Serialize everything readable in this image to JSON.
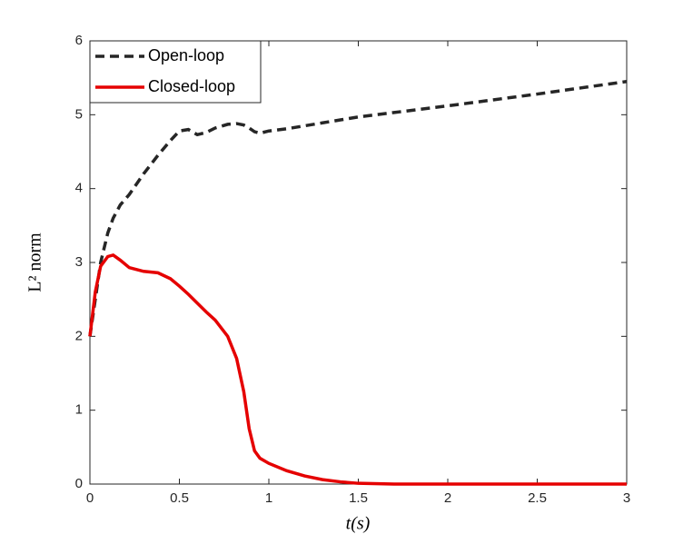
{
  "chart_data": {
    "type": "line",
    "xlabel": "t(s)",
    "ylabel": "L² norm",
    "x": [
      0,
      0.03,
      0.06,
      0.1,
      0.13,
      0.17,
      0.22,
      0.3,
      0.38,
      0.45,
      0.5,
      0.55,
      0.6,
      0.65,
      0.7,
      0.77,
      0.82,
      0.86,
      0.89,
      0.92,
      0.95,
      1.0,
      1.1,
      1.2,
      1.3,
      1.4,
      1.5,
      1.7,
      2.0,
      2.5,
      3.0
    ],
    "series": [
      {
        "name": "Open-loop",
        "color": "#262626",
        "dashed": true,
        "values": [
          2.0,
          2.5,
          3.0,
          3.4,
          3.6,
          3.78,
          3.92,
          4.2,
          4.45,
          4.65,
          4.78,
          4.8,
          4.73,
          4.76,
          4.82,
          4.87,
          4.88,
          4.86,
          4.82,
          4.77,
          4.75,
          4.78,
          4.81,
          4.85,
          4.89,
          4.93,
          4.97,
          5.03,
          5.12,
          5.28,
          5.45
        ]
      },
      {
        "name": "Closed-loop",
        "color": "#e50000",
        "dashed": false,
        "values": [
          2.0,
          2.6,
          2.95,
          3.08,
          3.1,
          3.03,
          2.93,
          2.88,
          2.86,
          2.78,
          2.68,
          2.57,
          2.45,
          2.33,
          2.22,
          2.0,
          1.7,
          1.25,
          0.75,
          0.45,
          0.35,
          0.28,
          0.18,
          0.11,
          0.06,
          0.03,
          0.01,
          0,
          0,
          0,
          0
        ]
      }
    ],
    "xlim": [
      0,
      3
    ],
    "ylim": [
      0,
      6
    ],
    "xticks": [
      0,
      0.5,
      1,
      1.5,
      2,
      2.5,
      3
    ],
    "yticks": [
      0,
      1,
      2,
      3,
      4,
      5,
      6
    ],
    "legend": "northwest",
    "grid": false
  }
}
